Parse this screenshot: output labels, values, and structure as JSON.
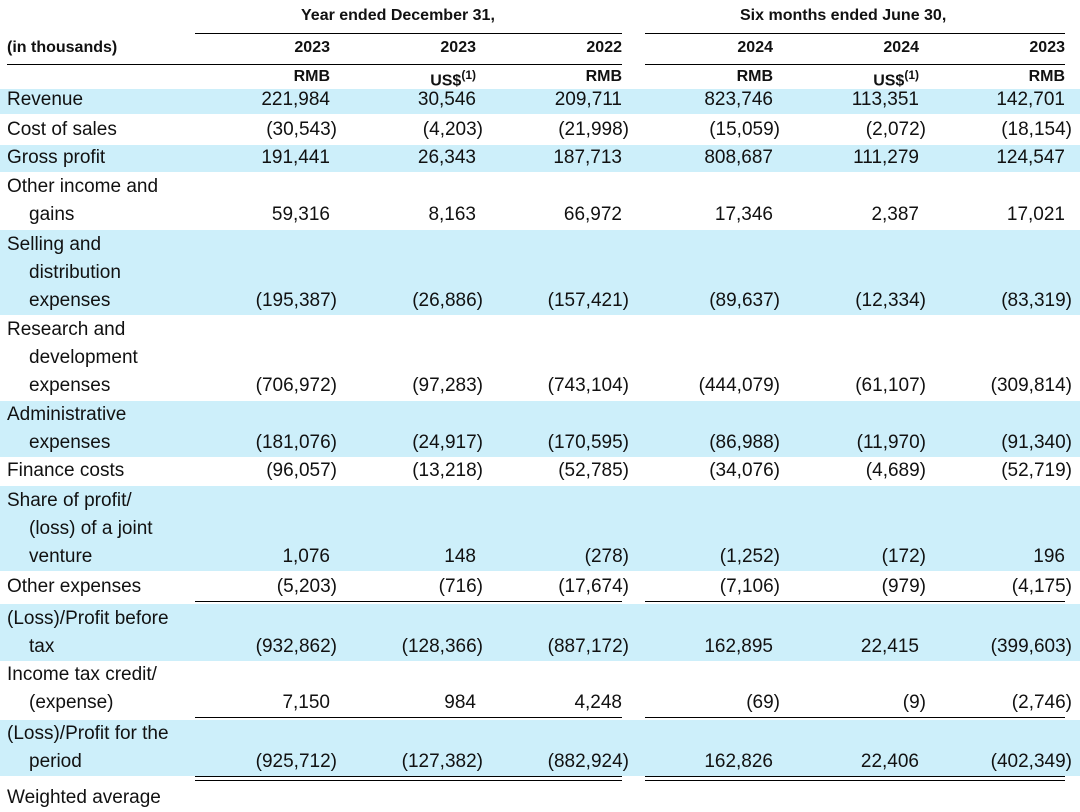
{
  "header": {
    "group_year": "Year ended December  31,",
    "group_six": "Six months ended June 30,",
    "unit_label": "(in thousands)",
    "columns": [
      {
        "year": "2023",
        "currency": "RMB",
        "note": ""
      },
      {
        "year": "2023",
        "currency": "US$",
        "note": "(1)"
      },
      {
        "year": "2022",
        "currency": "RMB",
        "note": ""
      },
      {
        "year": "2024",
        "currency": "RMB",
        "note": ""
      },
      {
        "year": "2024",
        "currency": "US$",
        "note": "(1)"
      },
      {
        "year": "2023",
        "currency": "RMB",
        "note": ""
      }
    ]
  },
  "rows": [
    {
      "lines": [
        "Revenue"
      ],
      "values": [
        "221,984",
        "30,546",
        "209,711",
        "823,746",
        "113,351",
        "142,701"
      ]
    },
    {
      "lines": [
        "Cost of sales"
      ],
      "values": [
        "(30,543)",
        "(4,203)",
        "(21,998)",
        "(15,059)",
        "(2,072)",
        "(18,154)"
      ]
    },
    {
      "lines": [
        "Gross profit"
      ],
      "values": [
        "191,441",
        "26,343",
        "187,713",
        "808,687",
        "111,279",
        "124,547"
      ]
    },
    {
      "lines": [
        "Other income and",
        "gains"
      ],
      "values": [
        "59,316",
        "8,163",
        "66,972",
        "17,346",
        "2,387",
        "17,021"
      ]
    },
    {
      "lines": [
        "Selling and",
        "distribution",
        "expenses"
      ],
      "values": [
        "(195,387)",
        "(26,886)",
        "(157,421)",
        "(89,637)",
        "(12,334)",
        "(83,319)"
      ]
    },
    {
      "lines": [
        "Research and",
        "development",
        "expenses"
      ],
      "values": [
        "(706,972)",
        "(97,283)",
        "(743,104)",
        "(444,079)",
        "(61,107)",
        "(309,814)"
      ]
    },
    {
      "lines": [
        "Administrative",
        "expenses"
      ],
      "values": [
        "(181,076)",
        "(24,917)",
        "(170,595)",
        "(86,988)",
        "(11,970)",
        "(91,340)"
      ]
    },
    {
      "lines": [
        "Finance costs"
      ],
      "values": [
        "(96,057)",
        "(13,218)",
        "(52,785)",
        "(34,076)",
        "(4,689)",
        "(52,719)"
      ]
    },
    {
      "lines": [
        "Share of profit/",
        "(loss) of a joint",
        "venture"
      ],
      "values": [
        "1,076",
        "148",
        "(278)",
        "(1,252)",
        "(172)",
        "196"
      ]
    },
    {
      "lines": [
        "Other expenses"
      ],
      "values": [
        "(5,203)",
        "(716)",
        "(17,674)",
        "(7,106)",
        "(979)",
        "(4,175)"
      ]
    },
    {
      "lines": [
        "(Loss)/Profit before",
        "tax"
      ],
      "values": [
        "(932,862)",
        "(128,366)",
        "(887,172)",
        "162,895",
        "22,415",
        "(399,603)"
      ]
    },
    {
      "lines": [
        "Income tax credit/",
        "(expense)"
      ],
      "values": [
        "7,150",
        "984",
        "4,248",
        "(69)",
        "(9)",
        "(2,746)"
      ]
    },
    {
      "lines": [
        "(Loss)/Profit for the",
        "period"
      ],
      "values": [
        "(925,712)",
        "(127,382)",
        "(882,924)",
        "162,826",
        "22,406",
        "(402,349)"
      ]
    }
  ],
  "trailing_label": "Weighted average",
  "colors": {
    "shade": "#cdeffa",
    "rule": "#000000"
  }
}
